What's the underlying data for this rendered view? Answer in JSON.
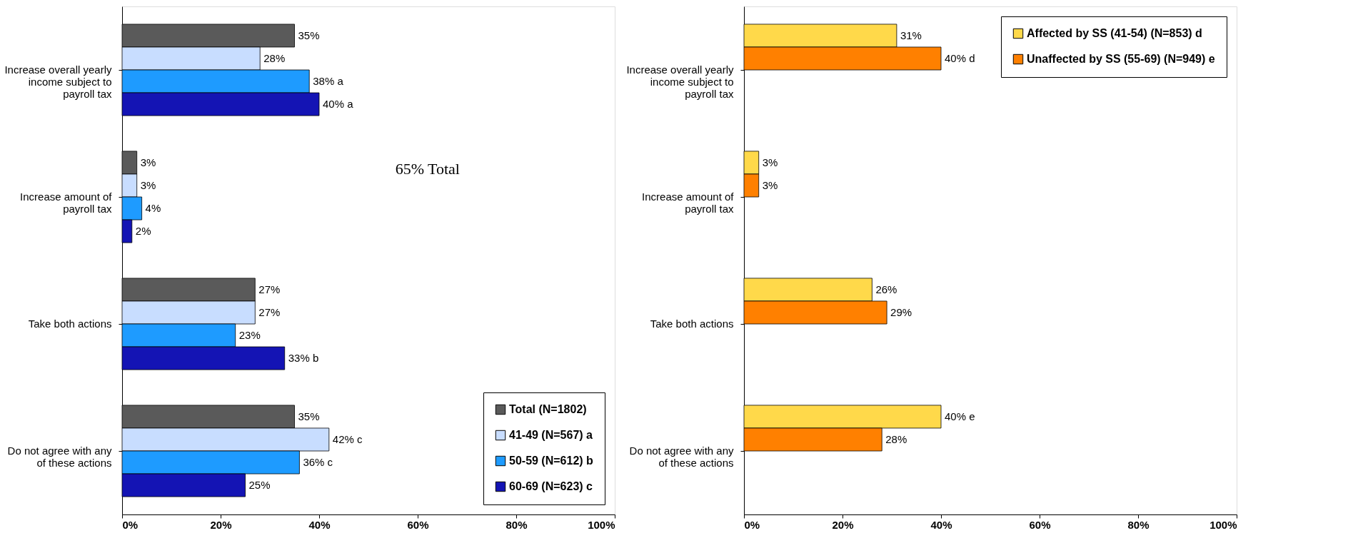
{
  "chart_data": [
    {
      "type": "bar",
      "orientation": "horizontal",
      "categories": [
        "Increase overall yearly income subject to payroll tax",
        "Increase amount of payroll tax",
        "Take both actions",
        "Do not agree with any of these actions"
      ],
      "series": [
        {
          "name": "Total (N=1802)",
          "color": "#5a5a5a",
          "values": [
            35,
            3,
            27,
            35
          ],
          "value_labels": [
            "35%",
            "3%",
            "27%",
            "35%"
          ]
        },
        {
          "name": "41-49 (N=567) a",
          "color": "#c8ddff",
          "values": [
            28,
            3,
            27,
            42
          ],
          "value_labels": [
            "28%",
            "3%",
            "27%",
            "42% c"
          ]
        },
        {
          "name": "50-59 (N=612) b",
          "color": "#1e9bff",
          "values": [
            38,
            4,
            23,
            36
          ],
          "value_labels": [
            "38% a",
            "4%",
            "23%",
            "36% c"
          ]
        },
        {
          "name": "60-69 (N=623) c",
          "color": "#1414b4",
          "values": [
            40,
            2,
            33,
            25
          ],
          "value_labels": [
            "40% a",
            "2%",
            "33% b",
            "25%"
          ]
        }
      ],
      "xlim": [
        0,
        100
      ],
      "xticks": [
        {
          "value": 0,
          "label": "0%"
        },
        {
          "value": 20,
          "label": "20%"
        },
        {
          "value": 40,
          "label": "40%"
        },
        {
          "value": 60,
          "label": "60%"
        },
        {
          "value": 80,
          "label": "80%"
        },
        {
          "value": 100,
          "label": "100%"
        }
      ],
      "grid": false,
      "legend": "bottom right",
      "annotations": [
        "65% Total"
      ]
    },
    {
      "type": "bar",
      "orientation": "horizontal",
      "categories": [
        "Increase overall yearly income subject to payroll tax",
        "Increase amount of payroll tax",
        "Take both actions",
        "Do not agree with any of these actions"
      ],
      "series": [
        {
          "name": "Affected by SS (41-54) (N=853) d",
          "color": "#ffd94a",
          "values": [
            31,
            3,
            26,
            40
          ],
          "value_labels": [
            "31%",
            "3%",
            "26%",
            "40% e"
          ]
        },
        {
          "name": "Unaffected by SS (55-69) (N=949) e",
          "color": "#ff8000",
          "values": [
            40,
            3,
            29,
            28
          ],
          "value_labels": [
            "40% d",
            "3%",
            "29%",
            "28%"
          ]
        }
      ],
      "xlim": [
        0,
        100
      ],
      "xticks": [
        {
          "value": 0,
          "label": "0%"
        },
        {
          "value": 20,
          "label": "20%"
        },
        {
          "value": 40,
          "label": "40%"
        },
        {
          "value": 60,
          "label": "60%"
        },
        {
          "value": 80,
          "label": "80%"
        },
        {
          "value": 100,
          "label": "100%"
        }
      ],
      "grid": false,
      "legend": "top right"
    }
  ]
}
